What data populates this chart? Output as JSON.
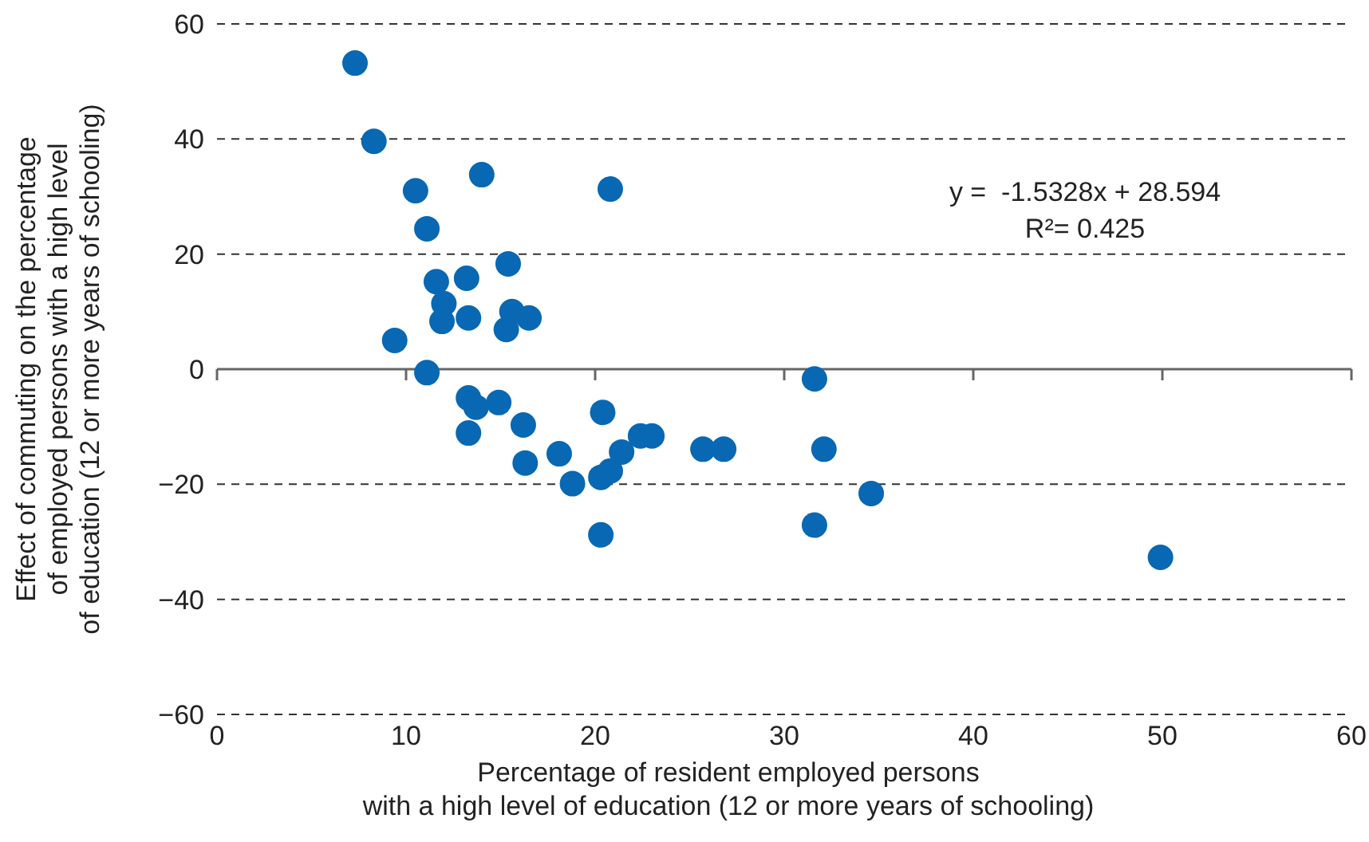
{
  "chart_data": {
    "type": "scatter",
    "xlabel": "Percentage of resident employed persons\nwith a high level of education (12 or more years of schooling)",
    "ylabel": "Effect of commuting on the percentage\nof employed persons with a high level\nof education (12 or more years of schooling)",
    "xlim": [
      0,
      60
    ],
    "xticks": [
      0,
      10,
      20,
      30,
      40,
      50,
      60
    ],
    "ylim": [
      -60,
      60
    ],
    "yticks": [
      {
        "value": -60,
        "label": "−60"
      },
      {
        "value": -40,
        "label": "−40"
      },
      {
        "value": -20,
        "label": "−20"
      },
      0,
      20,
      40,
      60
    ],
    "grid": "y",
    "marker": "circle",
    "series": [
      {
        "color": "#0868b3",
        "x": [
          7.3,
          8.3,
          10.5,
          11.1,
          14.0,
          20.8,
          11.6,
          13.2,
          15.4,
          12.0,
          11.9,
          13.3,
          15.6,
          16.5,
          15.3,
          9.4,
          11.1,
          13.3,
          13.7,
          14.9,
          13.3,
          16.2,
          16.3,
          18.1,
          18.8,
          20.4,
          21.4,
          22.4,
          23.0,
          20.8,
          20.3,
          20.3,
          25.7,
          26.8,
          31.6,
          32.1,
          31.6,
          34.6,
          49.9
        ],
        "values": [
          53.2,
          39.6,
          31,
          24.4,
          33.8,
          31.3,
          15.2,
          15.8,
          18.3,
          11.4,
          8.3,
          8.9,
          10.0,
          8.9,
          6.9,
          5.0,
          -0.6,
          -5.0,
          -6.6,
          -5.8,
          -11.1,
          -9.7,
          -16.3,
          -14.7,
          -19.9,
          -7.5,
          -14.4,
          -11.6,
          -11.6,
          -17.7,
          -18.8,
          -28.8,
          -13.9,
          -13.9,
          -1.7,
          -13.9,
          -27.1,
          -21.6,
          -32.7
        ]
      }
    ],
    "annotations": [
      "y =  -1.5328x + 28.594",
      "R²= 0.425"
    ]
  }
}
